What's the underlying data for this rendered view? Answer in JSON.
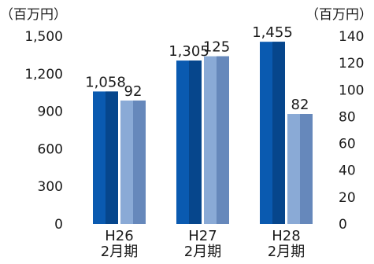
{
  "chart_data": {
    "type": "bar",
    "categories": [
      [
        "H26",
        "2月期"
      ],
      [
        "H27",
        "2月期"
      ],
      [
        "H28",
        "2月期"
      ]
    ],
    "series": [
      {
        "axis": "left",
        "values": [
          1058,
          1305,
          1455
        ],
        "labels": [
          "1,058",
          "1,305",
          "1,455"
        ],
        "color": "#0a5ab0",
        "color_dark": "#06468c"
      },
      {
        "axis": "right",
        "values": [
          92,
          125,
          82
        ],
        "labels": [
          "92",
          "125",
          "82"
        ],
        "color": "#8aaad6",
        "color_dark": "#6688bb"
      }
    ],
    "y_left": {
      "unit_label": "（百万円）",
      "min": 0,
      "max": 1500,
      "ticks": [
        "0",
        "300",
        "600",
        "900",
        "1,200",
        "1,500"
      ]
    },
    "y_right": {
      "unit_label": "（百万円）",
      "min": 0,
      "max": 140,
      "ticks": [
        "0",
        "20",
        "40",
        "60",
        "80",
        "100",
        "120",
        "140"
      ]
    },
    "grid": false,
    "title": ""
  }
}
